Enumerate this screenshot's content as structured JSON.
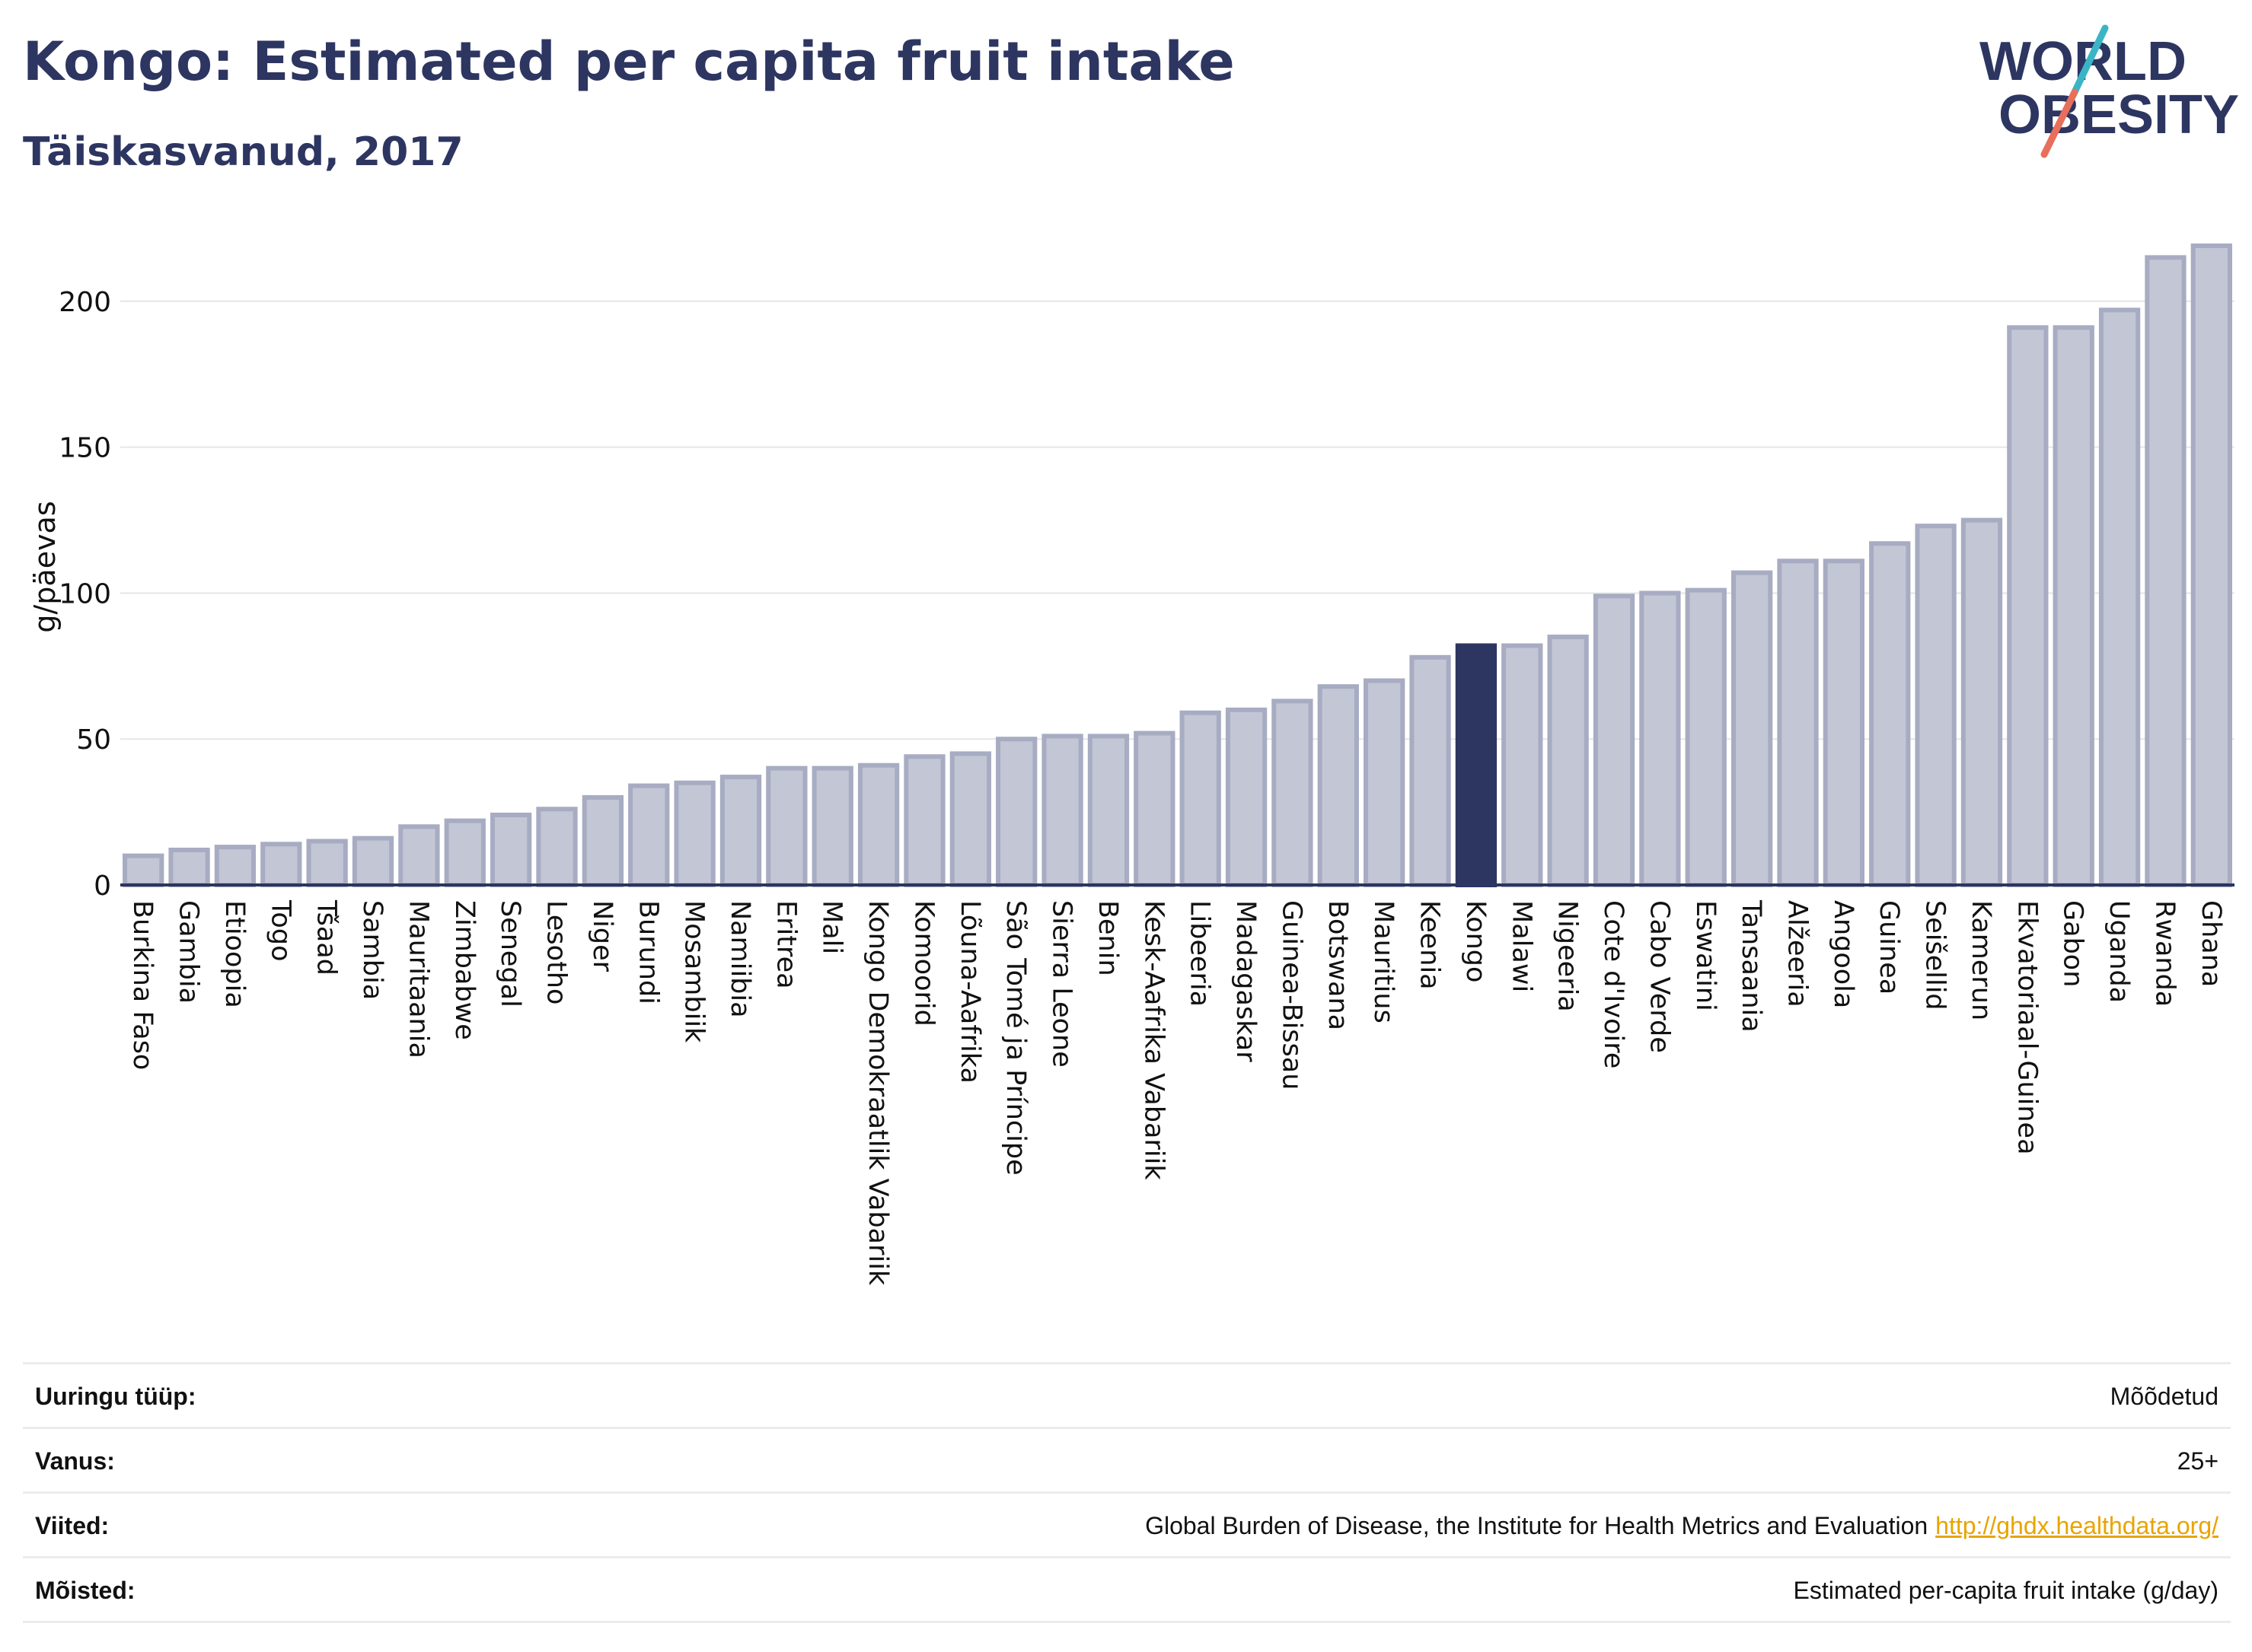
{
  "header": {
    "title": "Kongo: Estimated per capita fruit intake",
    "subtitle": "Täiskasvanud, 2017"
  },
  "logo": {
    "line1": "WORLD",
    "line2": "OBESITY"
  },
  "colors": {
    "highlight": "#2d3561",
    "bar": "#c2c6d5",
    "bar_edge": "#a7acc2",
    "axis": "#2d3561",
    "grid": "#e6e6e6",
    "logo_text": "#2d3561",
    "logo_slash_top": "#3ab5c6",
    "logo_slash_bottom": "#e86f5b",
    "link": "#e8a400"
  },
  "chart_data": {
    "type": "bar",
    "ylabel": "g/päevas",
    "ylim": [
      0,
      225
    ],
    "yticks": [
      0,
      50,
      100,
      150,
      200
    ],
    "grid": true,
    "highlight": "Kongo",
    "categories": [
      "Burkina Faso",
      "Gambia",
      "Etioopia",
      "Togo",
      "Tšaad",
      "Sambia",
      "Mauritaania",
      "Zimbabwe",
      "Senegal",
      "Lesotho",
      "Niger",
      "Burundi",
      "Mosambiik",
      "Namiibia",
      "Eritrea",
      "Mali",
      "Kongo Demokraatlik Vabariik",
      "Komoorid",
      "Lõuna-Aafrika",
      "São Tomé ja Príncipe",
      "Sierra Leone",
      "Benin",
      "Kesk-Aafrika Vabariik",
      "Libeeria",
      "Madagaskar",
      "Guinea-Bissau",
      "Botswana",
      "Mauritius",
      "Keenia",
      "Kongo",
      "Malawi",
      "Nigeeria",
      "Cote d'Ivoire",
      "Cabo Verde",
      "Eswatini",
      "Tansaania",
      "Alžeeria",
      "Angoola",
      "Guinea",
      "Seišellid",
      "Kamerun",
      "Ekvatoriaal-Guinea",
      "Gabon",
      "Uganda",
      "Rwanda",
      "Ghana"
    ],
    "values": [
      10,
      12,
      13,
      14,
      15,
      16,
      20,
      22,
      24,
      26,
      30,
      34,
      35,
      37,
      40,
      40,
      41,
      44,
      45,
      50,
      51,
      51,
      52,
      59,
      60,
      63,
      68,
      70,
      78,
      82,
      82,
      85,
      99,
      100,
      101,
      107,
      111,
      111,
      117,
      123,
      125,
      191,
      191,
      197,
      215,
      219
    ]
  },
  "info": [
    {
      "label": "Uuringu tüüp:",
      "value": "Mõõdetud",
      "link": ""
    },
    {
      "label": "Vanus:",
      "value": "25+",
      "link": ""
    },
    {
      "label": "Viited:",
      "value": "Global Burden of Disease, the Institute for Health Metrics and Evaluation",
      "link": "http://ghdx.healthdata.org/"
    },
    {
      "label": "Mõisted:",
      "value": "Estimated per-capita fruit intake (g/day)",
      "link": ""
    }
  ]
}
